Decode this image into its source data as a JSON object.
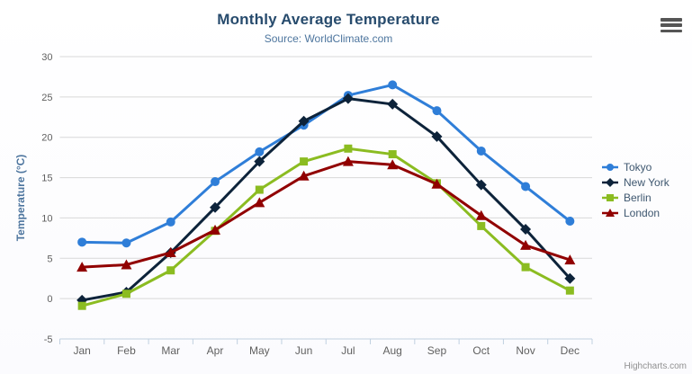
{
  "chart": {
    "title": "Monthly Average Temperature",
    "subtitle": "Source: WorldClimate.com",
    "credits_label": "Highcharts.com",
    "context_menu_icon": "hamburger-menu-icon"
  },
  "chart_data": {
    "type": "line",
    "title": "Monthly Average Temperature",
    "subtitle": "Source: WorldClimate.com",
    "xlabel": "",
    "ylabel": "Temperature (°C)",
    "categories": [
      "Jan",
      "Feb",
      "Mar",
      "Apr",
      "May",
      "Jun",
      "Jul",
      "Aug",
      "Sep",
      "Oct",
      "Nov",
      "Dec"
    ],
    "ylim": [
      -5,
      30
    ],
    "yticks": [
      -5,
      0,
      5,
      10,
      15,
      20,
      25,
      30
    ],
    "grid": true,
    "legend_position": "right",
    "series": [
      {
        "name": "Tokyo",
        "color": "#2f7ed8",
        "marker": "circle",
        "values": [
          7.0,
          6.9,
          9.5,
          14.5,
          18.2,
          21.5,
          25.2,
          26.5,
          23.3,
          18.3,
          13.9,
          9.6
        ]
      },
      {
        "name": "New York",
        "color": "#0d233a",
        "marker": "diamond",
        "values": [
          -0.2,
          0.8,
          5.7,
          11.3,
          17.0,
          22.0,
          24.8,
          24.1,
          20.1,
          14.1,
          8.6,
          2.5
        ]
      },
      {
        "name": "Berlin",
        "color": "#8bbc21",
        "marker": "square",
        "values": [
          -0.9,
          0.6,
          3.5,
          8.4,
          13.5,
          17.0,
          18.6,
          17.9,
          14.3,
          9.0,
          3.9,
          1.0
        ]
      },
      {
        "name": "London",
        "color": "#910000",
        "marker": "triangle",
        "values": [
          3.9,
          4.2,
          5.7,
          8.5,
          11.9,
          15.2,
          17.0,
          16.6,
          14.2,
          10.3,
          6.6,
          4.8
        ]
      }
    ]
  }
}
